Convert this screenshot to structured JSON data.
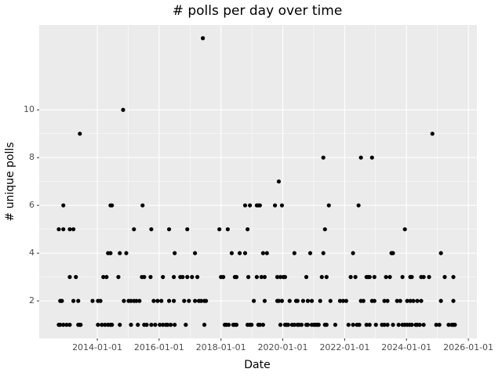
{
  "chart_data": {
    "type": "scatter",
    "title": "# polls per day over time",
    "x_label": "Date",
    "y_label": "# unique polls",
    "color": "#000000",
    "grid": true,
    "xlim": [
      "2012-02-15",
      "2026-04-12"
    ],
    "xticks": [
      "2014-01-01",
      "2016-01-01",
      "2018-01-01",
      "2020-01-01",
      "2022-01-01",
      "2024-01-01",
      "2026-01-01"
    ],
    "ylim": [
      0.43,
      13.55
    ],
    "yticks": [
      2,
      4,
      6,
      8,
      10
    ],
    "x": [
      "2012-10-03",
      "2012-10-03",
      "2012-10-20",
      "2012-10-20",
      "2012-11-09",
      "2012-11-26",
      "2012-11-26",
      "2012-11-26",
      "2013-01-04",
      "2013-02-10",
      "2013-02-10",
      "2013-02-10",
      "2013-03-25",
      "2013-03-25",
      "2013-04-23",
      "2013-05-21",
      "2013-05-21",
      "2013-06-09",
      "2013-06-09",
      "2013-06-18",
      "2013-11-06",
      "2014-01-09",
      "2014-01-09",
      "2014-02-07",
      "2014-02-24",
      "2014-03-13",
      "2014-04-02",
      "2014-04-20",
      "2014-05-08",
      "2014-05-08",
      "2014-06-06",
      "2014-06-06",
      "2014-06-06",
      "2014-06-23",
      "2014-06-23",
      "2014-09-07",
      "2014-09-24",
      "2014-09-24",
      "2014-11-02",
      "2014-11-11",
      "2014-12-09",
      "2015-01-06",
      "2015-02-03",
      "2015-02-03",
      "2015-03-10",
      "2015-03-10",
      "2015-04-07",
      "2015-04-25",
      "2015-05-14",
      "2015-06-12",
      "2015-06-20",
      "2015-07-09",
      "2015-07-09",
      "2015-08-07",
      "2015-09-22",
      "2015-10-01",
      "2015-10-01",
      "2015-10-29",
      "2015-11-16",
      "2015-12-14",
      "2016-01-09",
      "2016-01-28",
      "2016-02-15",
      "2016-02-15",
      "2016-03-22",
      "2016-04-10",
      "2016-04-28",
      "2016-04-28",
      "2016-05-17",
      "2016-06-23",
      "2016-06-23",
      "2016-07-03",
      "2016-07-03",
      "2016-09-07",
      "2016-10-05",
      "2016-10-23",
      "2016-11-11",
      "2016-11-29",
      "2016-11-29",
      "2016-12-18",
      "2017-01-24",
      "2017-02-28",
      "2017-02-28",
      "2017-03-28",
      "2017-04-15",
      "2017-05-13",
      "2017-06-01",
      "2017-06-19",
      "2017-06-19",
      "2017-07-08",
      "2017-12-13",
      "2018-01-01",
      "2018-01-28",
      "2018-02-15",
      "2018-03-04",
      "2018-03-22",
      "2018-04-02",
      "2018-05-08",
      "2018-05-26",
      "2018-06-14",
      "2018-06-14",
      "2018-07-03",
      "2018-07-03",
      "2018-08-10",
      "2018-10-13",
      "2018-10-13",
      "2018-11-11",
      "2018-11-11",
      "2018-11-20",
      "2018-12-09",
      "2018-12-09",
      "2018-12-28",
      "2019-01-24",
      "2019-02-28",
      "2019-02-28",
      "2019-03-18",
      "2019-03-18",
      "2019-04-06",
      "2019-04-06",
      "2019-04-24",
      "2019-05-13",
      "2019-05-13",
      "2019-06-01",
      "2019-06-01",
      "2019-06-28",
      "2019-10-01",
      "2019-10-28",
      "2019-10-28",
      "2019-11-15",
      "2019-11-15",
      "2019-12-04",
      "2019-12-04",
      "2019-12-22",
      "2019-12-22",
      "2020-01-09",
      "2020-01-28",
      "2020-01-28",
      "2020-02-15",
      "2020-03-04",
      "2020-03-22",
      "2020-04-20",
      "2020-05-17",
      "2020-05-17",
      "2020-06-06",
      "2020-06-23",
      "2020-06-23",
      "2020-07-12",
      "2020-08-10",
      "2020-08-28",
      "2020-10-05",
      "2020-10-05",
      "2020-10-23",
      "2020-10-23",
      "2020-11-20",
      "2020-12-09",
      "2020-12-09",
      "2021-01-05",
      "2021-01-24",
      "2021-02-11",
      "2021-02-28",
      "2021-03-18",
      "2021-04-06",
      "2021-04-24",
      "2021-04-24",
      "2021-05-13",
      "2021-05-13",
      "2021-06-01",
      "2021-06-01",
      "2021-06-28",
      "2021-07-17",
      "2021-09-12",
      "2021-11-07",
      "2021-12-13",
      "2022-01-19",
      "2022-02-15",
      "2022-03-13",
      "2022-04-10",
      "2022-04-10",
      "2022-05-08",
      "2022-05-26",
      "2022-06-14",
      "2022-06-23",
      "2022-07-12",
      "2022-07-12",
      "2022-08-10",
      "2022-09-16",
      "2022-09-16",
      "2022-10-05",
      "2022-10-23",
      "2022-10-23",
      "2022-11-20",
      "2022-11-20",
      "2022-12-18",
      "2022-12-18",
      "2023-01-05",
      "2023-03-18",
      "2023-04-15",
      "2023-04-15",
      "2023-05-04",
      "2023-05-22",
      "2023-05-22",
      "2023-06-19",
      "2023-07-08",
      "2023-07-26",
      "2023-07-26",
      "2023-09-12",
      "2023-09-30",
      "2023-10-19",
      "2023-11-15",
      "2023-11-15",
      "2023-12-13",
      "2023-12-13",
      "2024-01-09",
      "2024-01-09",
      "2024-02-07",
      "2024-02-15",
      "2024-02-15",
      "2024-03-04",
      "2024-03-04",
      "2024-03-22",
      "2024-04-20",
      "2024-05-08",
      "2024-05-08",
      "2024-06-06",
      "2024-06-23",
      "2024-06-23",
      "2024-07-22",
      "2024-07-22",
      "2024-09-24",
      "2024-11-02",
      "2024-12-18",
      "2025-01-24",
      "2025-02-11",
      "2025-02-11",
      "2025-03-28",
      "2025-05-13",
      "2025-06-19",
      "2025-07-08",
      "2025-07-08",
      "2025-07-08",
      "2025-07-26"
    ],
    "values": [
      5,
      1,
      2,
      1,
      2,
      6,
      5,
      1,
      1,
      3,
      5,
      1,
      5,
      2,
      3,
      1,
      2,
      9,
      1,
      1,
      2,
      2,
      1,
      2,
      1,
      3,
      1,
      3,
      4,
      1,
      6,
      4,
      1,
      6,
      1,
      3,
      4,
      1,
      10,
      2,
      4,
      2,
      2,
      1,
      5,
      2,
      2,
      1,
      2,
      3,
      6,
      3,
      1,
      1,
      3,
      5,
      1,
      2,
      1,
      2,
      1,
      2,
      3,
      1,
      1,
      1,
      5,
      2,
      1,
      2,
      3,
      4,
      1,
      3,
      3,
      2,
      1,
      5,
      3,
      2,
      3,
      4,
      2,
      3,
      2,
      2,
      13,
      1,
      2,
      2,
      5,
      3,
      3,
      1,
      1,
      5,
      1,
      4,
      1,
      1,
      3,
      3,
      1,
      4,
      6,
      4,
      5,
      1,
      3,
      6,
      1,
      1,
      2,
      6,
      3,
      6,
      1,
      6,
      1,
      3,
      1,
      4,
      3,
      2,
      4,
      6,
      3,
      2,
      7,
      2,
      1,
      3,
      2,
      6,
      3,
      1,
      3,
      1,
      1,
      2,
      1,
      4,
      1,
      2,
      1,
      2,
      1,
      1,
      2,
      3,
      1,
      1,
      2,
      4,
      2,
      1,
      1,
      1,
      1,
      1,
      2,
      3,
      8,
      4,
      5,
      1,
      3,
      1,
      6,
      2,
      1,
      2,
      2,
      2,
      1,
      3,
      4,
      1,
      3,
      1,
      6,
      1,
      8,
      2,
      2,
      3,
      1,
      3,
      3,
      1,
      8,
      2,
      3,
      2,
      1,
      1,
      2,
      1,
      3,
      1,
      2,
      3,
      4,
      4,
      1,
      2,
      1,
      2,
      3,
      1,
      5,
      1,
      2,
      1,
      1,
      3,
      2,
      3,
      1,
      2,
      1,
      2,
      1,
      1,
      3,
      2,
      3,
      1,
      3,
      9,
      1,
      1,
      4,
      2,
      3,
      1,
      1,
      3,
      2,
      1,
      1
    ]
  }
}
